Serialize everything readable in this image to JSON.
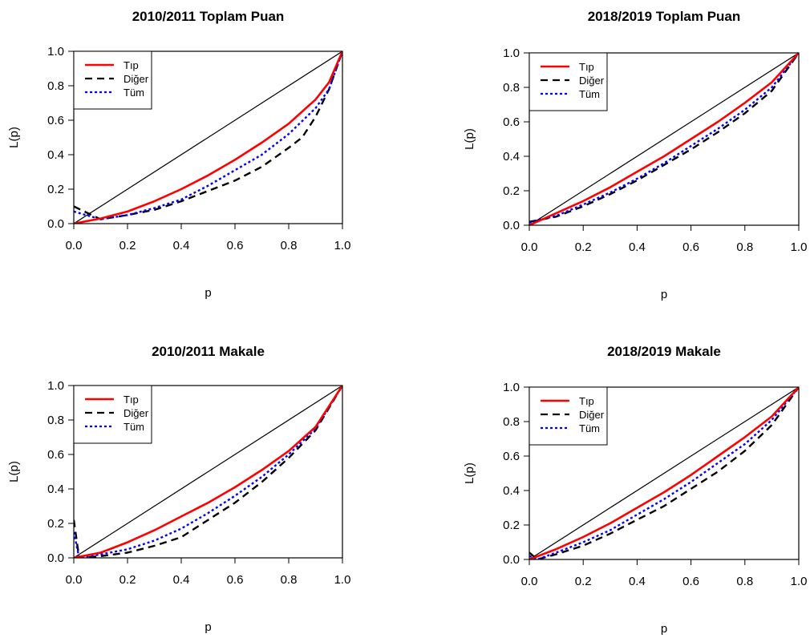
{
  "chart_data": [
    {
      "type": "line",
      "title": "2010/2011 Toplam Puan",
      "xlabel": "p",
      "ylabel": "L(p)",
      "xlim": [
        0,
        1
      ],
      "ylim": [
        0,
        1
      ],
      "x_ticks": [
        "0.0",
        "0.2",
        "0.4",
        "0.6",
        "0.8",
        "1.0"
      ],
      "y_ticks": [
        "0.0",
        "0.2",
        "0.4",
        "0.6",
        "0.8",
        "1.0"
      ],
      "legend_position": "top-left",
      "equality_line": {
        "x": [
          0,
          1
        ],
        "y": [
          0,
          1
        ]
      },
      "series": [
        {
          "name": "Tıp",
          "color": "#ff0000",
          "style": "solid",
          "x": [
            0,
            0.1,
            0.2,
            0.3,
            0.4,
            0.5,
            0.6,
            0.7,
            0.8,
            0.9,
            0.95,
            1.0
          ],
          "y": [
            0,
            0.03,
            0.07,
            0.13,
            0.2,
            0.28,
            0.37,
            0.47,
            0.58,
            0.72,
            0.82,
            1.0
          ]
        },
        {
          "name": "Diğer",
          "color": "#000000",
          "style": "dashed",
          "x": [
            0,
            0.1,
            0.2,
            0.3,
            0.4,
            0.5,
            0.6,
            0.7,
            0.8,
            0.85,
            0.9,
            0.95,
            1.0
          ],
          "y": [
            0.1,
            0.025,
            0.05,
            0.08,
            0.13,
            0.19,
            0.25,
            0.33,
            0.44,
            0.5,
            0.62,
            0.78,
            1.0
          ]
        },
        {
          "name": "Tüm",
          "color": "#0000ff",
          "style": "dotted",
          "x": [
            0,
            0.1,
            0.2,
            0.3,
            0.4,
            0.5,
            0.6,
            0.7,
            0.8,
            0.9,
            0.95,
            1.0
          ],
          "y": [
            0.07,
            0.025,
            0.05,
            0.09,
            0.14,
            0.22,
            0.31,
            0.4,
            0.52,
            0.67,
            0.78,
            1.0
          ]
        }
      ]
    },
    {
      "type": "line",
      "title": "2018/2019 Toplam Puan",
      "xlabel": "p",
      "ylabel": "L(p)",
      "xlim": [
        0,
        1
      ],
      "ylim": [
        0,
        1
      ],
      "x_ticks": [
        "0.0",
        "0.2",
        "0.4",
        "0.6",
        "0.8",
        "1.0"
      ],
      "y_ticks": [
        "0.0",
        "0.2",
        "0.4",
        "0.6",
        "0.8",
        "1.0"
      ],
      "legend_position": "top-left",
      "equality_line": {
        "x": [
          0,
          1
        ],
        "y": [
          0,
          1
        ]
      },
      "series": [
        {
          "name": "Tıp",
          "color": "#ff0000",
          "style": "solid",
          "x": [
            0,
            0.1,
            0.2,
            0.3,
            0.4,
            0.5,
            0.6,
            0.7,
            0.8,
            0.9,
            1.0
          ],
          "y": [
            0,
            0.07,
            0.14,
            0.22,
            0.31,
            0.4,
            0.5,
            0.6,
            0.71,
            0.83,
            1.0
          ]
        },
        {
          "name": "Diğer",
          "color": "#000000",
          "style": "dashed",
          "x": [
            0,
            0.1,
            0.2,
            0.3,
            0.4,
            0.5,
            0.6,
            0.7,
            0.8,
            0.9,
            1.0
          ],
          "y": [
            0.02,
            0.05,
            0.11,
            0.18,
            0.26,
            0.35,
            0.44,
            0.54,
            0.65,
            0.78,
            1.0
          ]
        },
        {
          "name": "Tüm",
          "color": "#0000ff",
          "style": "dotted",
          "x": [
            0,
            0.1,
            0.2,
            0.3,
            0.4,
            0.5,
            0.6,
            0.7,
            0.8,
            0.9,
            1.0
          ],
          "y": [
            0.015,
            0.055,
            0.12,
            0.19,
            0.27,
            0.36,
            0.46,
            0.56,
            0.67,
            0.8,
            1.0
          ]
        }
      ]
    },
    {
      "type": "line",
      "title": "2010/2011 Makale",
      "xlabel": "p",
      "ylabel": "L(p)",
      "xlim": [
        0,
        1
      ],
      "ylim": [
        0,
        1
      ],
      "x_ticks": [
        "0.0",
        "0.2",
        "0.4",
        "0.6",
        "0.8",
        "1.0"
      ],
      "y_ticks": [
        "0.0",
        "0.2",
        "0.4",
        "0.6",
        "0.8",
        "1.0"
      ],
      "legend_position": "top-left",
      "equality_line": {
        "x": [
          0,
          1
        ],
        "y": [
          0,
          1
        ]
      },
      "series": [
        {
          "name": "Tıp",
          "color": "#ff0000",
          "style": "solid",
          "x": [
            0,
            0.1,
            0.2,
            0.3,
            0.4,
            0.5,
            0.6,
            0.7,
            0.8,
            0.9,
            1.0
          ],
          "y": [
            0,
            0.03,
            0.09,
            0.16,
            0.24,
            0.32,
            0.41,
            0.51,
            0.62,
            0.76,
            1.0
          ]
        },
        {
          "name": "Diğer",
          "color": "#000000",
          "style": "dashed",
          "x": [
            0,
            0.02,
            0.1,
            0.2,
            0.3,
            0.4,
            0.5,
            0.6,
            0.7,
            0.8,
            0.9,
            1.0
          ],
          "y": [
            0.22,
            0,
            0.01,
            0.03,
            0.07,
            0.12,
            0.22,
            0.32,
            0.44,
            0.58,
            0.74,
            1.0
          ]
        },
        {
          "name": "Tüm",
          "color": "#0000ff",
          "style": "dotted",
          "x": [
            0,
            0.02,
            0.1,
            0.2,
            0.3,
            0.4,
            0.5,
            0.6,
            0.7,
            0.8,
            0.9,
            1.0
          ],
          "y": [
            0.15,
            0,
            0.02,
            0.05,
            0.1,
            0.17,
            0.26,
            0.36,
            0.47,
            0.6,
            0.75,
            1.0
          ]
        }
      ]
    },
    {
      "type": "line",
      "title": "2018/2019 Makale",
      "xlabel": "p",
      "ylabel": "L(p)",
      "xlim": [
        0,
        1
      ],
      "ylim": [
        0,
        1
      ],
      "x_ticks": [
        "0.0",
        "0.2",
        "0.4",
        "0.6",
        "0.8",
        "1.0"
      ],
      "y_ticks": [
        "0.0",
        "0.2",
        "0.4",
        "0.6",
        "0.8",
        "1.0"
      ],
      "legend_position": "top-left",
      "equality_line": {
        "x": [
          0,
          1
        ],
        "y": [
          0,
          1
        ]
      },
      "series": [
        {
          "name": "Tıp",
          "color": "#ff0000",
          "style": "solid",
          "x": [
            0,
            0.1,
            0.2,
            0.3,
            0.4,
            0.5,
            0.6,
            0.7,
            0.8,
            0.9,
            1.0
          ],
          "y": [
            0,
            0.06,
            0.13,
            0.21,
            0.3,
            0.39,
            0.49,
            0.6,
            0.71,
            0.83,
            1.0
          ]
        },
        {
          "name": "Diğer",
          "color": "#000000",
          "style": "dashed",
          "x": [
            0,
            0.03,
            0.1,
            0.2,
            0.3,
            0.4,
            0.5,
            0.6,
            0.7,
            0.8,
            0.9,
            1.0
          ],
          "y": [
            0.04,
            0,
            0.03,
            0.08,
            0.15,
            0.23,
            0.31,
            0.41,
            0.51,
            0.63,
            0.78,
            1.0
          ]
        },
        {
          "name": "Tüm",
          "color": "#0000ff",
          "style": "dotted",
          "x": [
            0,
            0.03,
            0.1,
            0.2,
            0.3,
            0.4,
            0.5,
            0.6,
            0.7,
            0.8,
            0.9,
            1.0
          ],
          "y": [
            0.02,
            0,
            0.04,
            0.1,
            0.17,
            0.26,
            0.35,
            0.45,
            0.56,
            0.67,
            0.81,
            1.0
          ]
        }
      ]
    }
  ]
}
